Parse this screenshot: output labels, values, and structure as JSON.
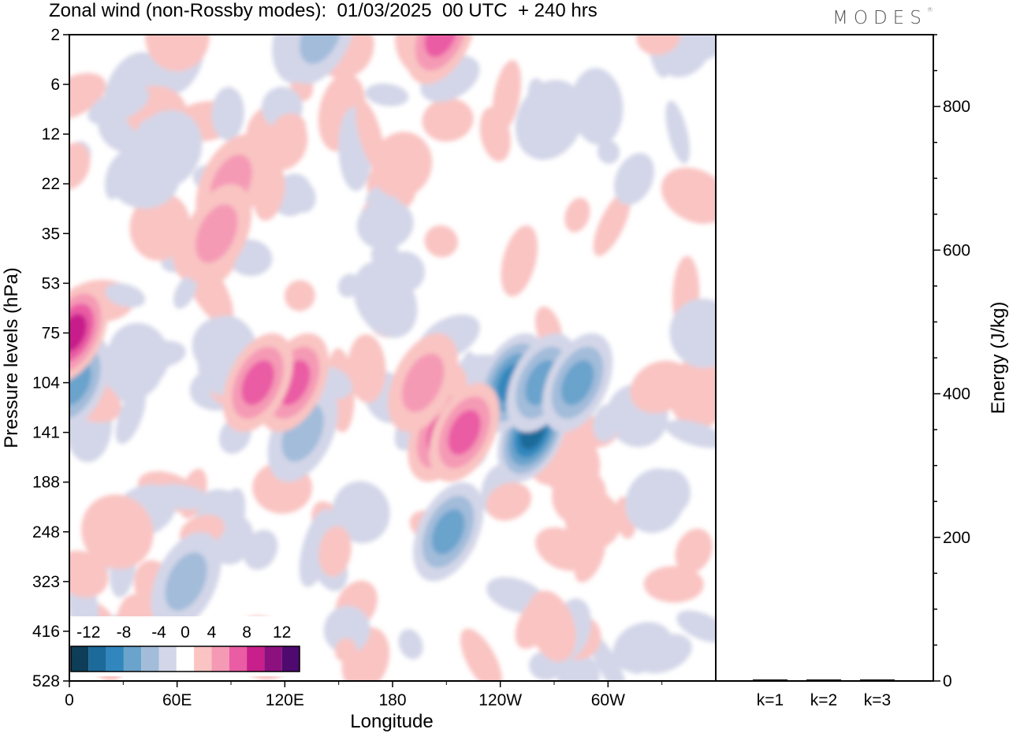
{
  "header": {
    "title": "Zonal wind (non-Rossby modes):  01/03/2025  00 UTC  + 240 hrs",
    "logo": "MODES",
    "logo_mark": "®"
  },
  "chart_data": [
    {
      "type": "heatmap",
      "title": "Zonal wind (non-Rossby modes):  01/03/2025  00 UTC  + 240 hrs",
      "xlabel": "Longitude",
      "ylabel": "Pressure levels (hPa)",
      "x_ticks": [
        "0",
        "60E",
        "120E",
        "180",
        "120W",
        "60W"
      ],
      "x_tick_values": [
        0,
        60,
        120,
        180,
        240,
        300
      ],
      "xlim": [
        0,
        360
      ],
      "y_ticks": [
        "2",
        "6",
        "12",
        "22",
        "35",
        "53",
        "75",
        "104",
        "141",
        "188",
        "248",
        "323",
        "416",
        "528"
      ],
      "y_scale": "model levels (nonlinear)",
      "grid": false,
      "colorbar": {
        "labels": [
          "-12",
          "-8",
          "-4",
          "0",
          "4",
          "8",
          "12"
        ],
        "label_values": [
          -12,
          -8,
          -4,
          0,
          4,
          8,
          12
        ],
        "levels": [
          -14,
          -12,
          -10,
          -8,
          -6,
          -4,
          -2,
          2,
          4,
          6,
          8,
          10,
          12,
          14
        ],
        "colors": [
          "#0e3d57",
          "#1b6a99",
          "#3187bd",
          "#6aa3cc",
          "#a2bcda",
          "#d3d6e8",
          "#ffffff",
          "#f9c4c2",
          "#f59ab5",
          "#ea5ca4",
          "#c81f8b",
          "#8c117f",
          "#4e0a6e"
        ],
        "placement": "bottom-left"
      },
      "features": [
        {
          "lon": 258,
          "level": 141,
          "value": -11
        },
        {
          "lon": 246,
          "level": 104,
          "value": -8
        },
        {
          "lon": 263,
          "level": 104,
          "value": -7
        },
        {
          "lon": 3,
          "level": 104,
          "value": -7
        },
        {
          "lon": 211,
          "level": 248,
          "value": -6
        },
        {
          "lon": 65,
          "level": 323,
          "value": -5
        },
        {
          "lon": 130,
          "level": 141,
          "value": -5
        },
        {
          "lon": 2,
          "level": 75,
          "value": 8
        },
        {
          "lon": 125,
          "level": 104,
          "value": 7
        },
        {
          "lon": 105,
          "level": 104,
          "value": 6
        },
        {
          "lon": 208,
          "level": 141,
          "value": 7
        },
        {
          "lon": 220,
          "level": 141,
          "value": 6
        },
        {
          "lon": 197,
          "level": 104,
          "value": 5
        },
        {
          "lon": 90,
          "level": 22,
          "value": 5
        },
        {
          "lon": 207,
          "level": 2,
          "value": 6
        },
        {
          "lon": 82,
          "level": 35,
          "value": 5
        },
        {
          "lon": 283,
          "level": 104,
          "value": -6
        },
        {
          "lon": 140,
          "level": 2,
          "value": -5
        }
      ]
    },
    {
      "type": "bar",
      "categories": [
        "k=1",
        "k=2",
        "k=3"
      ],
      "values": [
        1,
        1,
        1
      ],
      "ylabel": "Energy (J/kg)",
      "y_ticks": [
        "0",
        "200",
        "400",
        "600",
        "800"
      ],
      "y_tick_values": [
        0,
        200,
        400,
        600,
        800
      ],
      "ylim": [
        0,
        900
      ]
    }
  ]
}
